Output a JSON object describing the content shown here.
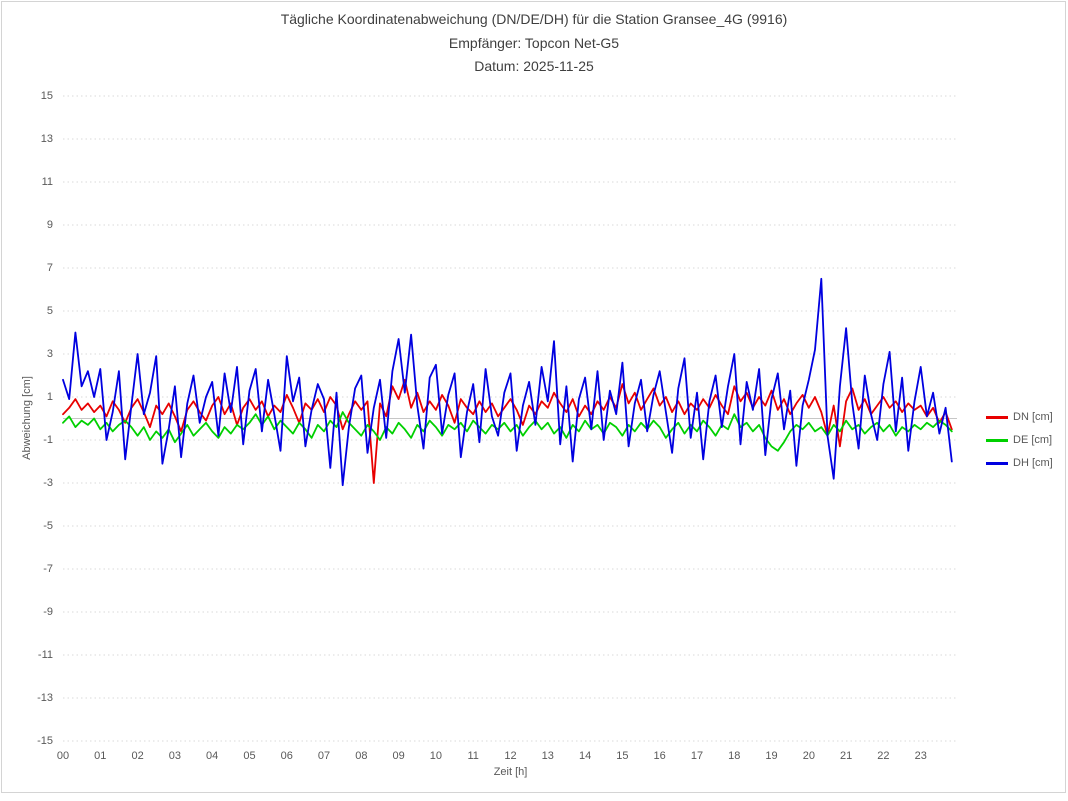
{
  "window": {
    "background": "#ffffff",
    "border_color": "#d4d4d4"
  },
  "chart_data": {
    "type": "line",
    "title": "Tägliche Koordinatenabweichung (DN/DE/DH) für die Station Gransee_4G (9916)",
    "subtitle": "Empfänger: Topcon Net-G5",
    "date_line": "Datum: 2025-11-25",
    "xlabel": "Zeit [h]",
    "ylabel": "Abweichung [cm]",
    "xlim": [
      0,
      24
    ],
    "ylim": [
      -15,
      15
    ],
    "x_tick_labels": [
      "00",
      "01",
      "02",
      "03",
      "04",
      "05",
      "06",
      "07",
      "08",
      "09",
      "10",
      "11",
      "12",
      "13",
      "14",
      "15",
      "16",
      "17",
      "18",
      "19",
      "20",
      "21",
      "22",
      "23"
    ],
    "y_tick_values": [
      15,
      13,
      11,
      9,
      7,
      5,
      3,
      1,
      -1,
      -3,
      -5,
      -7,
      -9,
      -11,
      -13,
      -15
    ],
    "grid": {
      "horizontal_lines": "dotted at odd values",
      "zero_line": "solid",
      "vertical_lines": "none"
    },
    "legend_position": "right",
    "points_per_hour": 6,
    "series": [
      {
        "name": "DN [cm]",
        "color": "#e80000",
        "values": [
          0.2,
          0.5,
          0.9,
          0.4,
          0.7,
          0.3,
          0.6,
          0.1,
          0.8,
          0.4,
          -0.2,
          0.5,
          0.9,
          0.3,
          -0.4,
          0.6,
          0.2,
          0.7,
          0.1,
          -0.6,
          0.4,
          0.8,
          0.3,
          -0.1,
          0.6,
          1.0,
          0.2,
          0.7,
          -0.3,
          0.5,
          0.9,
          0.4,
          0.8,
          0.1,
          0.6,
          0.3,
          1.1,
          0.5,
          -0.2,
          0.7,
          0.4,
          0.9,
          0.3,
          1.0,
          0.6,
          -0.5,
          0.2,
          0.8,
          0.4,
          0.8,
          -3.0,
          0.7,
          0.1,
          1.5,
          0.9,
          1.8,
          0.5,
          1.2,
          0.3,
          0.8,
          0.4,
          1.1,
          0.6,
          -0.2,
          0.9,
          0.5,
          0.2,
          0.8,
          0.3,
          0.7,
          0.1,
          0.5,
          0.9,
          0.4,
          -0.3,
          0.6,
          0.2,
          0.8,
          0.5,
          1.2,
          0.7,
          0.3,
          0.9,
          0.1,
          0.6,
          0.2,
          0.8,
          0.4,
          1.0,
          0.5,
          1.6,
          0.7,
          1.2,
          0.4,
          0.9,
          1.4,
          0.6,
          1.0,
          0.3,
          0.8,
          0.2,
          0.7,
          0.4,
          0.9,
          0.5,
          1.1,
          0.6,
          0.2,
          1.5,
          0.8,
          1.2,
          0.5,
          1.0,
          0.6,
          1.3,
          0.4,
          0.9,
          0.2,
          0.7,
          1.1,
          0.5,
          1.0,
          0.3,
          -0.8,
          0.6,
          -1.3,
          0.8,
          1.4,
          0.4,
          0.9,
          0.2,
          0.6,
          1.0,
          0.5,
          0.8,
          0.3,
          0.7,
          0.4,
          0.6,
          0.1,
          0.5,
          -0.2,
          0.3,
          -0.5
        ]
      },
      {
        "name": "DE [cm]",
        "color": "#00d000",
        "values": [
          -0.2,
          0.1,
          -0.4,
          -0.1,
          -0.3,
          0.0,
          -0.5,
          -0.2,
          -0.6,
          -0.3,
          -0.1,
          -0.4,
          -0.8,
          -0.4,
          -1.0,
          -0.6,
          -0.9,
          -0.5,
          -1.1,
          -0.7,
          -0.3,
          -0.8,
          -0.5,
          -0.2,
          -0.6,
          -0.9,
          -0.4,
          -0.7,
          -0.3,
          -0.5,
          -0.2,
          0.2,
          -0.3,
          0.1,
          -0.5,
          -0.1,
          -0.4,
          -0.7,
          -0.2,
          -0.5,
          -0.9,
          -0.3,
          -0.6,
          -0.1,
          -0.4,
          0.3,
          -0.2,
          -0.5,
          -0.8,
          -0.3,
          -0.6,
          -1.0,
          -0.4,
          -0.7,
          -0.2,
          -0.5,
          -0.9,
          -0.3,
          -0.6,
          -0.1,
          -0.4,
          -0.8,
          -0.3,
          -0.5,
          -0.2,
          -0.6,
          -0.1,
          -0.4,
          -0.7,
          -0.3,
          -0.5,
          -0.2,
          -0.6,
          -0.3,
          -0.8,
          -0.4,
          -0.1,
          -0.5,
          -0.2,
          -0.7,
          -0.4,
          -0.9,
          -0.3,
          -0.6,
          -0.1,
          -0.5,
          -0.3,
          -0.7,
          -0.2,
          -0.4,
          -0.8,
          -0.3,
          -0.6,
          -0.2,
          -0.5,
          -0.1,
          -0.4,
          -0.9,
          -0.5,
          -0.2,
          -0.7,
          -0.3,
          -0.6,
          -0.1,
          -0.4,
          -0.8,
          -0.3,
          -0.5,
          0.2,
          -0.4,
          -0.2,
          -0.6,
          -0.3,
          -0.9,
          -1.3,
          -1.5,
          -1.1,
          -0.6,
          -0.3,
          -0.5,
          -0.2,
          -0.6,
          -0.4,
          -0.8,
          -0.3,
          -0.6,
          -0.1,
          -0.5,
          -0.3,
          -0.7,
          -0.4,
          -0.2,
          -0.6,
          -0.3,
          -0.8,
          -0.4,
          -0.6,
          -0.3,
          -0.5,
          -0.2,
          -0.4,
          -0.1,
          -0.3,
          -0.6
        ]
      },
      {
        "name": "DH [cm]",
        "color": "#0000e0",
        "values": [
          1.8,
          0.9,
          4.0,
          1.5,
          2.2,
          1.0,
          2.3,
          -1.0,
          0.3,
          2.2,
          -1.9,
          0.6,
          3.0,
          0.2,
          1.2,
          2.9,
          -2.1,
          -0.5,
          1.5,
          -1.8,
          0.7,
          2.0,
          -0.2,
          1.0,
          1.7,
          -0.8,
          2.1,
          0.3,
          2.4,
          -1.2,
          1.3,
          2.3,
          -0.6,
          1.8,
          0.2,
          -1.5,
          2.9,
          0.8,
          1.9,
          -1.3,
          0.4,
          1.6,
          0.9,
          -2.3,
          1.2,
          -3.1,
          -0.4,
          1.4,
          2.0,
          -1.6,
          0.5,
          1.8,
          -0.9,
          2.2,
          3.7,
          1.2,
          3.9,
          0.6,
          -1.4,
          1.9,
          2.5,
          -0.7,
          1.1,
          2.1,
          -1.8,
          0.3,
          1.6,
          -1.1,
          2.3,
          0.1,
          -0.8,
          1.2,
          2.1,
          -1.5,
          0.6,
          1.7,
          -0.3,
          2.4,
          0.8,
          3.6,
          -1.2,
          1.5,
          -2.0,
          0.9,
          1.9,
          -0.5,
          2.2,
          -1.0,
          1.3,
          0.2,
          2.6,
          -1.3,
          0.7,
          1.8,
          -0.6,
          1.1,
          2.2,
          0.3,
          -1.6,
          1.4,
          2.8,
          -0.9,
          1.2,
          -1.9,
          0.8,
          2.0,
          -0.4,
          1.5,
          3.0,
          -1.2,
          1.7,
          0.4,
          2.3,
          -1.7,
          0.9,
          2.1,
          -0.5,
          1.3,
          -2.2,
          0.6,
          1.8,
          3.2,
          6.5,
          -0.8,
          -2.8,
          1.5,
          4.2,
          0.7,
          -1.4,
          2.0,
          0.2,
          -1.0,
          1.6,
          3.1,
          -0.6,
          1.9,
          -1.5,
          0.8,
          2.4,
          0.1,
          1.2,
          -0.7,
          0.5,
          -2.0
        ]
      }
    ]
  }
}
